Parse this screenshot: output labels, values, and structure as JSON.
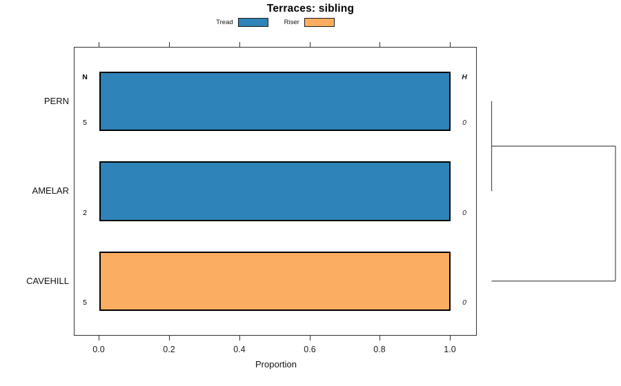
{
  "figure": {
    "title": "Terraces: sibling",
    "legend": [
      {
        "label": "Tread",
        "color": "#2E83B8"
      },
      {
        "label": "Riser",
        "color": "#FBAD61"
      }
    ],
    "left_header": "N",
    "right_header": "H",
    "rows": [
      {
        "label": "PERN",
        "n": "5",
        "h": "0",
        "segment": "Tread",
        "color": "#2E83B8",
        "proportion": 1.0
      },
      {
        "label": "AMELAR",
        "n": "2",
        "h": "0",
        "segment": "Tread",
        "color": "#2E83B8",
        "proportion": 1.0
      },
      {
        "label": "CAVEHILL",
        "n": "5",
        "h": "0",
        "segment": "Riser",
        "color": "#FBAD61",
        "proportion": 1.0
      }
    ],
    "x_axis": {
      "label": "Proportion",
      "ticks": [
        "0.0",
        "0.2",
        "0.4",
        "0.6",
        "0.8",
        "1.0"
      ]
    }
  },
  "chart_data": {
    "type": "bar",
    "orientation": "horizontal",
    "title": "Terraces: sibling",
    "xlabel": "Proportion",
    "xlim": [
      0,
      1
    ],
    "x_ticks": [
      0.0,
      0.2,
      0.4,
      0.6,
      0.8,
      1.0
    ],
    "categories": [
      "PERN",
      "AMELAR",
      "CAVEHILL"
    ],
    "series": [
      {
        "name": "Tread",
        "color": "#2E83B8",
        "values": [
          1.0,
          1.0,
          0.0
        ]
      },
      {
        "name": "Riser",
        "color": "#FBAD61",
        "values": [
          0.0,
          0.0,
          1.0
        ]
      }
    ],
    "sample_sizes": {
      "header": "N",
      "values": [
        5,
        2,
        5
      ]
    },
    "h_values": {
      "header": "H",
      "values": [
        0,
        0,
        0
      ]
    },
    "legend_position": "top-center",
    "grid": false,
    "dendrogram": {
      "side": "right",
      "leaves_top_to_bottom": [
        "PERN",
        "AMELAR",
        "CAVEHILL"
      ],
      "merges": [
        {
          "members": [
            "PERN",
            "AMELAR"
          ],
          "height": 0
        },
        {
          "members": [
            "PERN+AMELAR",
            "CAVEHILL"
          ],
          "height": 1
        }
      ]
    }
  }
}
